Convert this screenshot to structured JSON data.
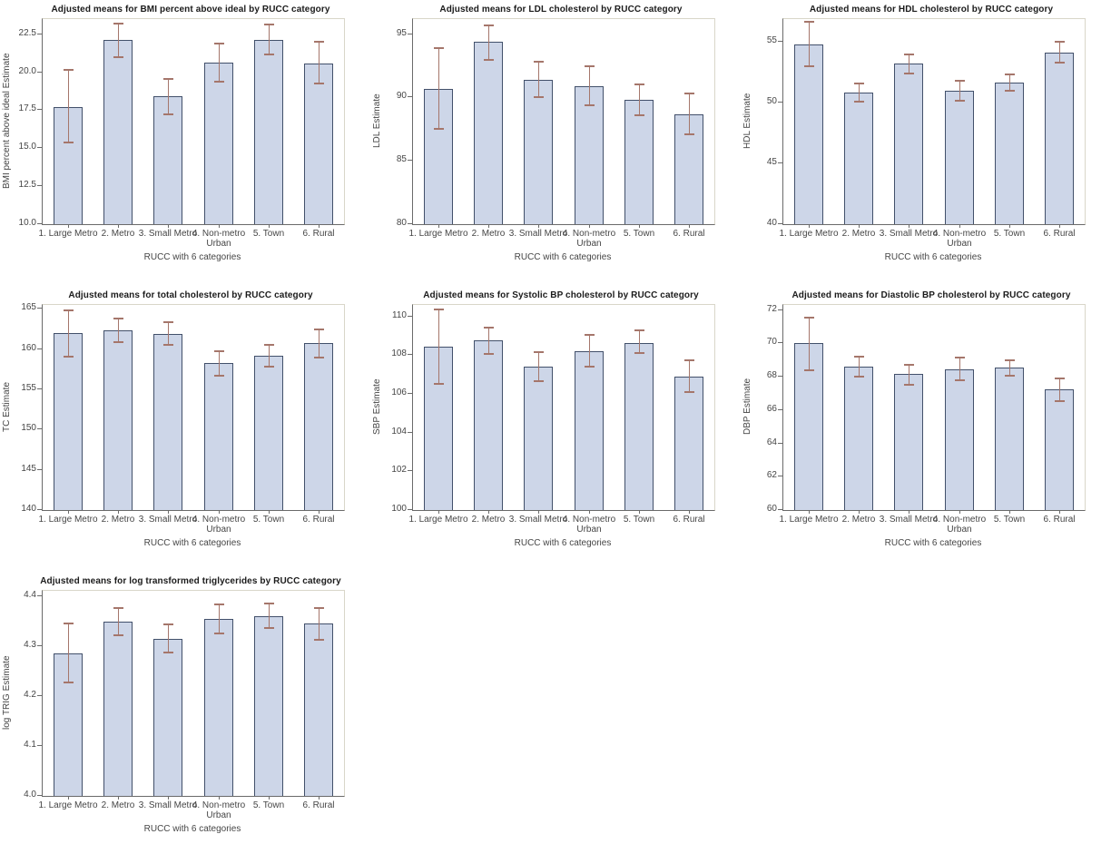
{
  "page": {
    "background": "#ffffff",
    "description": "Panel of seven bar charts with error bars showing adjusted means by RUCC category"
  },
  "style": {
    "bar_fill": "#cdd6e8",
    "bar_border": "#42506a",
    "error_color": "#a5766b",
    "axis_color": "#6a6a6a",
    "frame_color": "#d9d6c9",
    "title_color": "#1b1b1b",
    "label_color": "#454545"
  },
  "chart_data": [
    {
      "id": "bmi",
      "type": "bar",
      "layout": {
        "row": 1,
        "col": 1
      },
      "title": "Adjusted means for BMI percent above ideal by RUCC category",
      "ylabel": "BMI percent above ideal Estimate",
      "xlabel": "RUCC with 6 categories",
      "categories": [
        "1. Large Metro",
        "2. Metro",
        "3. Small Metro",
        "4. Non-metro Urban",
        "5. Town",
        "6. Rural"
      ],
      "values": [
        17.7,
        22.1,
        18.4,
        20.65,
        22.15,
        20.6
      ],
      "error_low": [
        15.35,
        21.0,
        17.2,
        19.4,
        21.15,
        19.25
      ],
      "error_high": [
        20.15,
        23.2,
        19.55,
        21.9,
        23.15,
        22.0
      ],
      "ylim": [
        10.0,
        23.5
      ],
      "ytick_values": [
        10.0,
        12.5,
        15.0,
        17.5,
        20.0,
        22.5
      ],
      "ytick_labels": [
        "10.0",
        "12.5",
        "15.0",
        "17.5",
        "20.0",
        "22.5"
      ],
      "grid": false,
      "legend": null
    },
    {
      "id": "ldl",
      "type": "bar",
      "layout": {
        "row": 1,
        "col": 2
      },
      "title": "Adjusted means for LDL cholesterol by RUCC category",
      "ylabel": "LDL Estimate",
      "xlabel": "RUCC with 6 categories",
      "categories": [
        "1. Large Metro",
        "2. Metro",
        "3. Small Metro",
        "4. Non-metro Urban",
        "5. Town",
        "6. Rural"
      ],
      "values": [
        90.7,
        94.4,
        91.4,
        90.9,
        89.85,
        88.7
      ],
      "error_low": [
        87.5,
        93.0,
        90.0,
        89.4,
        88.6,
        87.1
      ],
      "error_high": [
        93.9,
        95.7,
        92.85,
        92.5,
        91.05,
        90.3
      ],
      "ylim": [
        80,
        96.2
      ],
      "ytick_values": [
        80,
        85,
        90,
        95
      ],
      "ytick_labels": [
        "80",
        "85",
        "90",
        "95"
      ],
      "grid": false,
      "legend": null
    },
    {
      "id": "hdl",
      "type": "bar",
      "layout": {
        "row": 1,
        "col": 3
      },
      "title": "Adjusted means for HDL cholesterol by RUCC category",
      "ylabel": "HDL Estimate",
      "xlabel": "RUCC with 6 categories",
      "categories": [
        "1. Large Metro",
        "2. Metro",
        "3. Small Metro",
        "4. Non-metro Urban",
        "5. Town",
        "6. Rural"
      ],
      "values": [
        54.8,
        50.85,
        53.2,
        51.0,
        51.65,
        54.15
      ],
      "error_low": [
        53.0,
        50.1,
        52.45,
        50.2,
        51.0,
        53.3
      ],
      "error_high": [
        56.7,
        51.6,
        54.0,
        51.8,
        52.35,
        55.0
      ],
      "ylim": [
        40,
        56.9
      ],
      "ytick_values": [
        40,
        45,
        50,
        55
      ],
      "ytick_labels": [
        "40",
        "45",
        "50",
        "55"
      ],
      "grid": false,
      "legend": null
    },
    {
      "id": "tc",
      "type": "bar",
      "layout": {
        "row": 2,
        "col": 1
      },
      "title": "Adjusted means for total cholesterol by RUCC category",
      "ylabel": "TC Estimate",
      "xlabel": "RUCC with 6 categories",
      "categories": [
        "1. Large Metro",
        "2. Metro",
        "3. Small Metro",
        "4. Non-metro Urban",
        "5. Town",
        "6. Rural"
      ],
      "values": [
        162.0,
        162.3,
        161.9,
        158.25,
        159.15,
        160.75
      ],
      "error_low": [
        159.1,
        160.9,
        160.5,
        156.7,
        157.8,
        159.0
      ],
      "error_high": [
        164.85,
        163.8,
        163.4,
        159.8,
        160.5,
        162.45
      ],
      "ylim": [
        140,
        165.5
      ],
      "ytick_values": [
        140,
        145,
        150,
        155,
        160,
        165
      ],
      "ytick_labels": [
        "140",
        "145",
        "150",
        "155",
        "160",
        "165"
      ],
      "grid": false,
      "legend": null
    },
    {
      "id": "sbp",
      "type": "bar",
      "layout": {
        "row": 2,
        "col": 2
      },
      "title": "Adjusted means for Systolic BP cholesterol by RUCC category",
      "ylabel": "SBP Estimate",
      "xlabel": "RUCC with 6 categories",
      "categories": [
        "1. Large Metro",
        "2. Metro",
        "3. Small Metro",
        "4. Non-metro Urban",
        "5. Town",
        "6. Rural"
      ],
      "values": [
        108.45,
        108.75,
        107.4,
        108.2,
        108.65,
        106.9
      ],
      "error_low": [
        106.5,
        108.05,
        106.65,
        107.4,
        108.1,
        106.1
      ],
      "error_high": [
        110.35,
        109.45,
        108.15,
        109.05,
        109.3,
        107.75
      ],
      "ylim": [
        100,
        110.6
      ],
      "ytick_values": [
        100,
        102,
        104,
        106,
        108,
        110
      ],
      "ytick_labels": [
        "100",
        "102",
        "104",
        "106",
        "108",
        "110"
      ],
      "grid": false,
      "legend": null
    },
    {
      "id": "dbp",
      "type": "bar",
      "layout": {
        "row": 2,
        "col": 3
      },
      "title": "Adjusted means for Diastolic BP cholesterol by RUCC category",
      "ylabel": "DBP Estimate",
      "xlabel": "RUCC with 6 categories",
      "categories": [
        "1. Large Metro",
        "2. Metro",
        "3. Small Metro",
        "4. Non-metro Urban",
        "5. Town",
        "6. Rural"
      ],
      "values": [
        70.0,
        68.6,
        68.15,
        68.45,
        68.55,
        67.25
      ],
      "error_low": [
        68.4,
        68.0,
        67.5,
        67.8,
        68.05,
        66.55
      ],
      "error_high": [
        71.55,
        69.2,
        68.7,
        69.15,
        69.0,
        67.9
      ],
      "ylim": [
        60,
        72.3
      ],
      "ytick_values": [
        60,
        62,
        64,
        66,
        68,
        70,
        72
      ],
      "ytick_labels": [
        "60",
        "62",
        "64",
        "66",
        "68",
        "70",
        "72"
      ],
      "grid": false,
      "legend": null
    },
    {
      "id": "trig",
      "type": "bar",
      "layout": {
        "row": 3,
        "col": 1
      },
      "title": "Adjusted means for log transformed triglycerides by RUCC category",
      "ylabel": "log TRIG Estimate",
      "xlabel": "RUCC with 6 categories",
      "categories": [
        "1. Large Metro",
        "2. Metro",
        "3. Small Metro",
        "4. Non-metro Urban",
        "5. Town",
        "6. Rural"
      ],
      "values": [
        4.285,
        4.349,
        4.313,
        4.353,
        4.36,
        4.344
      ],
      "error_low": [
        4.227,
        4.322,
        4.286,
        4.324,
        4.336,
        4.312
      ],
      "error_high": [
        4.344,
        4.376,
        4.342,
        4.382,
        4.384,
        4.376
      ],
      "ylim": [
        4.0,
        4.41
      ],
      "ytick_values": [
        4.0,
        4.1,
        4.2,
        4.3,
        4.4
      ],
      "ytick_labels": [
        "4.0",
        "4.1",
        "4.2",
        "4.3",
        "4.4"
      ],
      "grid": false,
      "legend": null
    }
  ]
}
